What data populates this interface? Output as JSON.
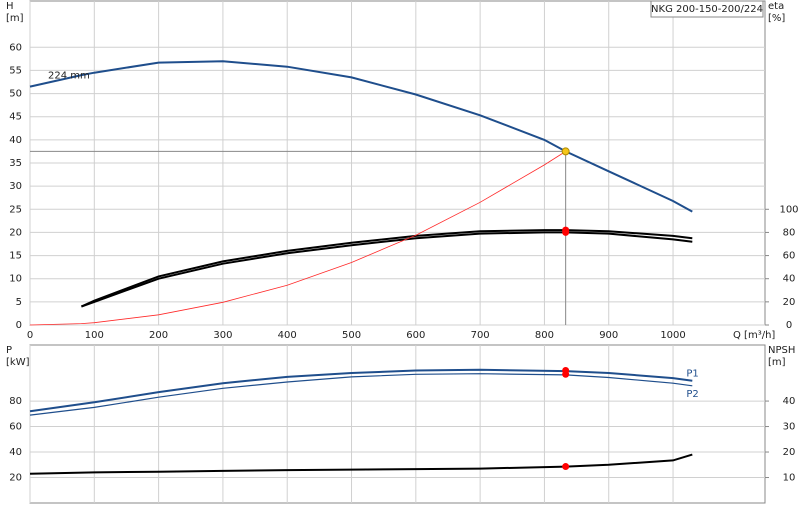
{
  "chart_data": [
    {
      "type": "line",
      "title": "NKG 200-150-200/224",
      "ylabel": [
        "H",
        "[m]"
      ],
      "y2label": [
        "eta",
        "[%]"
      ],
      "xlabel": "Q [m³/h]",
      "xlim": [
        0,
        1143
      ],
      "xticks": [
        0,
        100,
        200,
        300,
        400,
        500,
        600,
        700,
        800,
        900,
        1000
      ],
      "xtick_labels": true,
      "ylim": [
        0,
        70
      ],
      "yticks": [
        0,
        5,
        10,
        15,
        20,
        25,
        30,
        35,
        40,
        45,
        50,
        55,
        60
      ],
      "y2lim": [
        0,
        280
      ],
      "y2ticks": [
        0,
        20,
        40,
        60,
        80,
        100
      ],
      "grid": true,
      "x": [
        0,
        80,
        100,
        200,
        300,
        400,
        500,
        600,
        700,
        800,
        833,
        900,
        1000,
        1030
      ],
      "series": [
        {
          "name": "224 mm",
          "label_at": "start",
          "color": "#1f4e8c",
          "width": 2,
          "values": [
            51.5,
            54,
            54.5,
            56.7,
            57,
            55.8,
            53.5,
            49.8,
            45.3,
            40,
            37.5,
            33.2,
            26.8,
            24.5
          ]
        },
        {
          "color": "#000000",
          "width": 2,
          "axis": "y2",
          "values": [
            null,
            16,
            21,
            42,
            55,
            64,
            71,
            77,
            81,
            82,
            82,
            81,
            77,
            75
          ]
        },
        {
          "color": "#000000",
          "width": 2,
          "axis": "y2",
          "values": [
            null,
            16,
            20,
            40,
            53,
            62,
            69,
            75,
            79,
            80,
            80,
            79,
            74,
            72
          ]
        },
        {
          "color": "#ff2a2a",
          "width": 0.8,
          "values": [
            0,
            0.3,
            0.5,
            2.2,
            4.9,
            8.6,
            13.5,
            19.4,
            26.5,
            34.6,
            37.5,
            null,
            null,
            null
          ]
        }
      ],
      "markers": [
        {
          "x": 833,
          "y": 37.5,
          "color": "#f5c518",
          "guides": true
        },
        {
          "x": 833,
          "y": 82,
          "color": "#ff0000",
          "axis": "y2"
        },
        {
          "x": 833,
          "y": 80,
          "color": "#ff0000",
          "axis": "y2"
        }
      ]
    },
    {
      "type": "line",
      "ylabel": [
        "P",
        "[kW]"
      ],
      "y2label": [
        "NPSH",
        "[m]"
      ],
      "xlim": [
        0,
        1143
      ],
      "xticks": [
        0,
        100,
        200,
        300,
        400,
        500,
        600,
        700,
        800,
        900,
        1000
      ],
      "xtick_labels": false,
      "ylim": [
        0,
        124
      ],
      "yticks": [
        20,
        40,
        60,
        80
      ],
      "y2lim": [
        0,
        62
      ],
      "y2ticks": [
        10,
        20,
        30,
        40
      ],
      "grid": true,
      "x": [
        0,
        100,
        200,
        300,
        400,
        500,
        600,
        700,
        833,
        900,
        1000,
        1030
      ],
      "series": [
        {
          "name": "P1",
          "label_at": "end",
          "color": "#1f4e8c",
          "width": 2,
          "values": [
            72,
            79,
            87,
            94,
            99,
            102,
            104,
            104.5,
            103.5,
            102,
            98,
            96
          ]
        },
        {
          "name": "P2",
          "label_at": "end",
          "color": "#1f4e8c",
          "width": 1.2,
          "values": [
            69,
            75,
            83,
            90,
            95,
            99,
            101,
            101.5,
            100.5,
            98.5,
            94,
            92
          ]
        },
        {
          "color": "#000000",
          "width": 2,
          "axis": "y2",
          "values": [
            11.5,
            12,
            12.3,
            12.6,
            12.9,
            13.1,
            13.3,
            13.5,
            14.3,
            15,
            16.7,
            19
          ]
        }
      ],
      "markers": [
        {
          "x": 833,
          "y": 104,
          "color": "#ff0000"
        },
        {
          "x": 833,
          "y": 101,
          "color": "#ff0000"
        },
        {
          "x": 833,
          "y": 14.3,
          "color": "#ff0000",
          "axis": "y2"
        }
      ]
    }
  ]
}
